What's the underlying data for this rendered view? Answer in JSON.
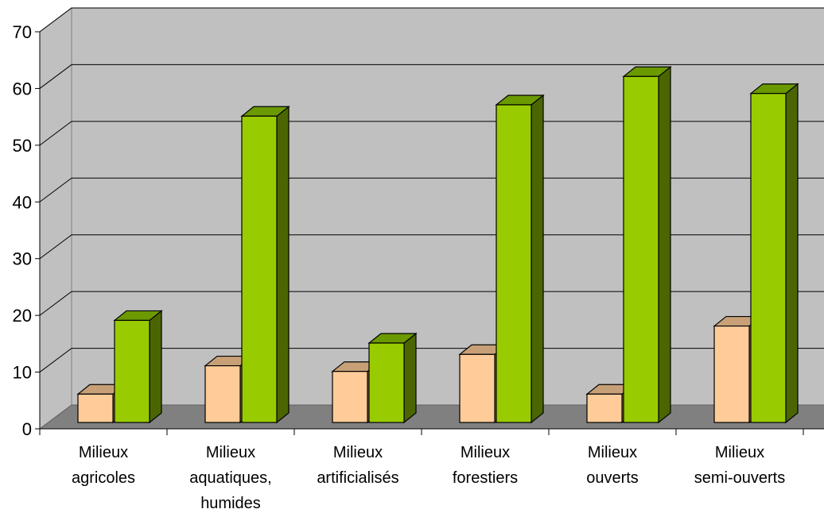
{
  "chart_data": {
    "type": "bar",
    "categories": [
      [
        "Milieux",
        "agricoles"
      ],
      [
        "Milieux",
        "aquatiques,",
        "humides"
      ],
      [
        "Milieux",
        "artificialisés"
      ],
      [
        "Milieux",
        "forestiers"
      ],
      [
        "Milieux",
        "ouverts"
      ],
      [
        "Milieux",
        "semi-ouverts"
      ]
    ],
    "series": [
      {
        "values": [
          5,
          10,
          9,
          12,
          5,
          17
        ],
        "color": "#FFCC99"
      },
      {
        "values": [
          18,
          54,
          14,
          56,
          61,
          58
        ],
        "color": "#99CC00"
      }
    ],
    "ylim": [
      0,
      70
    ],
    "yticks": [
      0,
      10,
      20,
      30,
      40,
      50,
      60,
      70
    ],
    "grid": true,
    "legend": "none",
    "colors": {
      "wall": "#C0C0C0",
      "floor": "#808080",
      "series1_top": "#C8A078",
      "series1_side": "#9A7A58",
      "series2_top": "#6B9900",
      "series2_side": "#4B6600"
    }
  }
}
